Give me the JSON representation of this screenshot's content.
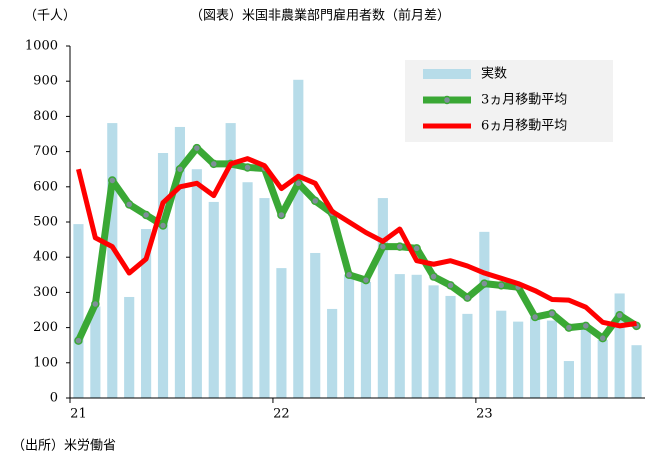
{
  "chart_data": {
    "type": "bar-line",
    "title": "（図表）米国非農業部門雇用者数（前月差）",
    "y_label": "（千人）",
    "source": "（出所）米労働省",
    "categories": [
      "21",
      null,
      null,
      null,
      null,
      null,
      null,
      null,
      null,
      null,
      null,
      null,
      "22",
      null,
      null,
      null,
      null,
      null,
      null,
      null,
      null,
      null,
      null,
      null,
      "23",
      null,
      null,
      null,
      null,
      null,
      null,
      null,
      null,
      null
    ],
    "series": [
      {
        "name": "実数",
        "type": "bar",
        "color": "#b7dce9",
        "values": [
          494,
          260,
          781,
          287,
          480,
          696,
          770,
          650,
          557,
          781,
          613,
          568,
          369,
          904,
          412,
          253,
          350,
          330,
          568,
          352,
          350,
          320,
          290,
          239,
          472,
          248,
          217,
          230,
          220,
          105,
          200,
          165,
          297,
          150
        ]
      },
      {
        "name": "3ヵ月移動平均",
        "type": "line",
        "color": "#3aa835",
        "markers": true,
        "values": [
          163,
          267,
          618,
          550,
          520,
          490,
          650,
          710,
          665,
          665,
          655,
          652,
          520,
          610,
          560,
          525,
          350,
          335,
          430,
          430,
          425,
          345,
          320,
          285,
          325,
          320,
          315,
          230,
          240,
          200,
          205,
          170,
          235,
          205
        ]
      },
      {
        "name": "6ヵ月移動平均",
        "type": "line",
        "color": "#ff0000",
        "markers": false,
        "values": [
          650,
          455,
          430,
          355,
          395,
          555,
          600,
          610,
          575,
          665,
          680,
          660,
          595,
          630,
          610,
          530,
          500,
          470,
          445,
          480,
          390,
          380,
          390,
          375,
          355,
          340,
          325,
          305,
          280,
          278,
          258,
          215,
          205,
          212
        ]
      }
    ],
    "ylim": [
      0,
      1000
    ],
    "yticks": [
      0,
      100,
      200,
      300,
      400,
      500,
      600,
      700,
      800,
      900,
      1000
    ],
    "grid": false,
    "legend": "upper-right"
  }
}
